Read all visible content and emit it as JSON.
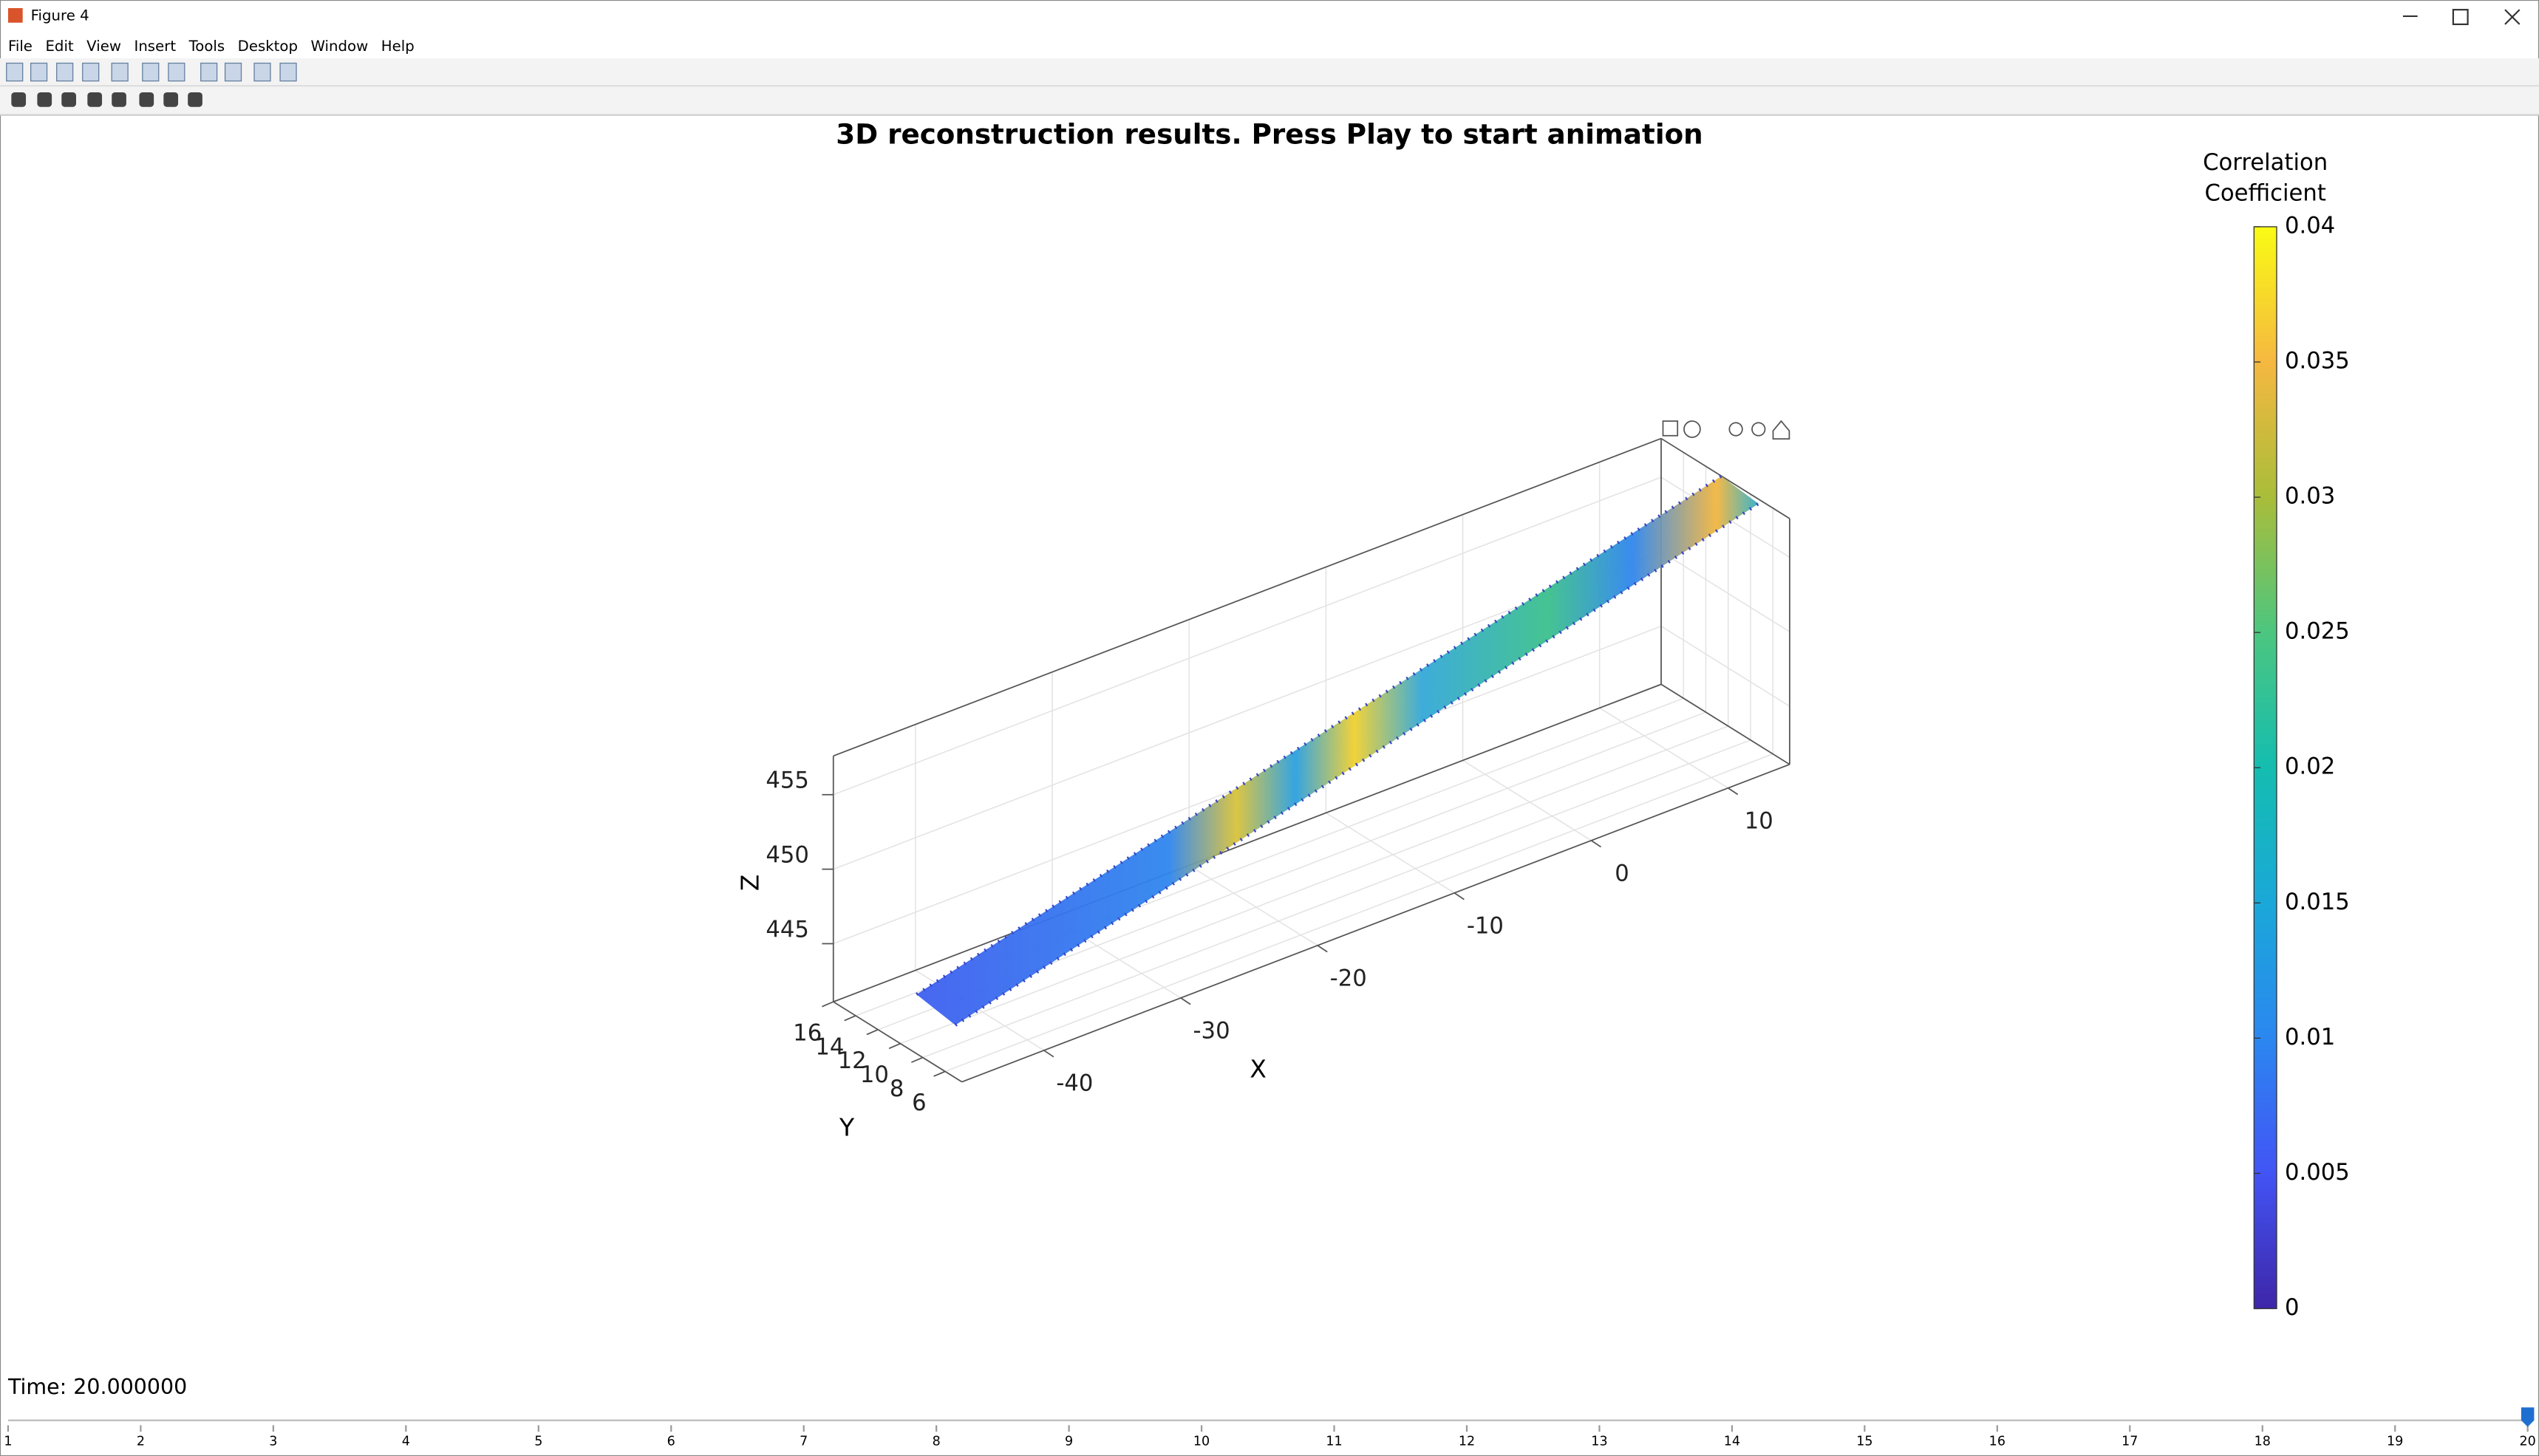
{
  "window": {
    "title": "Figure 4",
    "menu": [
      "File",
      "Edit",
      "View",
      "Insert",
      "Tools",
      "Desktop",
      "Window",
      "Help"
    ]
  },
  "chart_data": {
    "type": "surface3d",
    "title": "3D reconstruction results. Press Play to start animation",
    "xlabel": "X",
    "ylabel": "Y",
    "zlabel": "Z",
    "xlim": [
      -46,
      14.5
    ],
    "ylim": [
      4.5,
      16
    ],
    "zlim": [
      441.1,
      457.6
    ],
    "xticks": [
      -40,
      -30,
      -20,
      -10,
      0,
      10
    ],
    "yticks": [
      6,
      8,
      10,
      12,
      14,
      16
    ],
    "zticks": [
      445,
      450,
      455
    ],
    "grid": true,
    "colorbar": {
      "label": [
        "Correlation",
        "Coefficient"
      ],
      "lim": [
        0,
        0.04
      ],
      "ticks": [
        0,
        0.005,
        0.01,
        0.015,
        0.02,
        0.025,
        0.03,
        0.035,
        0.04
      ],
      "colormap": [
        "#3e26a8",
        "#4254f5",
        "#2b87f0",
        "#1aa8d8",
        "#14bdb0",
        "#4cc67f",
        "#a9bd3a",
        "#f5b840",
        "#f9fb14"
      ]
    }
  },
  "status": {
    "time_label": "Time: 20.000000"
  },
  "slider": {
    "ticks": [
      1,
      2,
      3,
      4,
      5,
      6,
      7,
      8,
      9,
      10,
      11,
      12,
      13,
      14,
      15,
      16,
      17,
      18,
      19,
      20
    ],
    "value": 20
  }
}
